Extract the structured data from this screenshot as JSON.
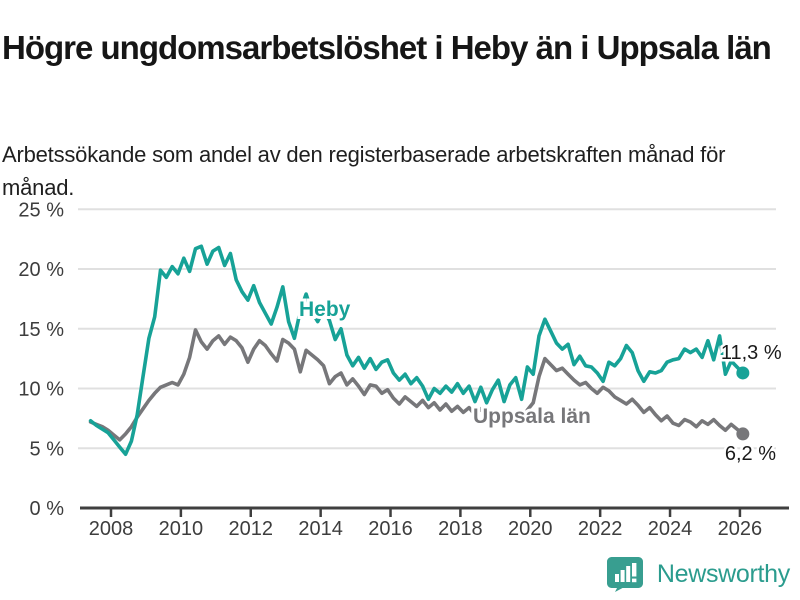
{
  "title": "Högre ungdomsarbetslöshet i Heby än i Uppsala län",
  "subtitle": "Arbetssökande som andel av den registerbaserade arbetskraften månad för månad.",
  "footer": {
    "brand": "Newsworthy",
    "logo_icon": "bar-chart-speech-bubble-icon"
  },
  "colors": {
    "heby_line": "#17a297",
    "uppsala_line": "#77777a",
    "axis": "#3f3f3f",
    "gridline": "#e0e0e0",
    "tick_text": "#3d3d3d",
    "annotation_text": "#1a1a1a",
    "brand_teal": "#389e90"
  },
  "chart_data": {
    "type": "line",
    "title": "Högre ungdomsarbetslöshet i Heby än i Uppsala län",
    "xlabel": "",
    "ylabel": "",
    "grid": true,
    "legend_position": "inline-labels",
    "x_axis": {
      "tick_years": [
        2008,
        2010,
        2012,
        2014,
        2016,
        2018,
        2020,
        2022,
        2024,
        2026
      ],
      "range": [
        2007.2,
        2026.6
      ]
    },
    "y_axis": {
      "tick_labels": [
        "0 %",
        "5 %",
        "10 %",
        "15 %",
        "20 %",
        "25 %"
      ],
      "tick_values": [
        0,
        5,
        10,
        15,
        20,
        25
      ],
      "range": [
        0,
        25
      ]
    },
    "series": [
      {
        "name": "Uppsala län",
        "end_label": "6,2 %",
        "last_value": 6.2,
        "x0": 2007.417,
        "dx": 0.166667,
        "values": [
          7.2,
          7.0,
          6.8,
          6.5,
          6.1,
          5.7,
          6.2,
          6.8,
          7.6,
          8.3,
          9.0,
          9.6,
          10.1,
          10.3,
          10.5,
          10.3,
          11.2,
          12.6,
          14.9,
          13.9,
          13.3,
          14.0,
          14.4,
          13.7,
          14.3,
          14.0,
          13.4,
          12.2,
          13.3,
          14.0,
          13.6,
          12.9,
          12.3,
          14.1,
          13.8,
          13.3,
          11.4,
          13.2,
          12.8,
          12.4,
          11.9,
          10.4,
          11.0,
          11.3,
          10.3,
          10.8,
          10.2,
          9.5,
          10.3,
          10.2,
          9.6,
          9.9,
          9.2,
          8.7,
          9.3,
          8.9,
          8.5,
          9.0,
          8.4,
          8.8,
          8.2,
          8.7,
          8.1,
          8.5,
          8.0,
          8.4,
          7.8,
          8.3,
          7.6,
          8.1,
          7.4,
          6.9,
          7.6,
          7.9,
          7.4,
          8.2,
          8.8,
          11.0,
          12.5,
          12.0,
          11.5,
          11.7,
          11.2,
          10.7,
          10.3,
          10.5,
          10.0,
          9.6,
          10.1,
          9.8,
          9.3,
          9.0,
          8.7,
          9.1,
          8.6,
          8.0,
          8.4,
          7.8,
          7.3,
          7.7,
          7.1,
          6.9,
          7.4,
          7.2,
          6.8,
          7.3,
          7.0,
          7.4,
          6.9,
          6.5,
          7.0,
          6.6,
          6.2
        ]
      },
      {
        "name": "Heby",
        "end_label": "11,3 %",
        "last_value": 11.3,
        "x0": 2007.417,
        "dx": 0.166667,
        "values": [
          7.3,
          6.9,
          6.6,
          6.3,
          5.7,
          5.1,
          4.5,
          5.6,
          7.8,
          11.0,
          14.2,
          16.0,
          19.9,
          19.3,
          20.2,
          19.6,
          20.9,
          19.8,
          21.7,
          21.9,
          20.4,
          21.5,
          21.8,
          20.3,
          21.3,
          19.1,
          18.1,
          17.4,
          18.6,
          17.2,
          16.3,
          15.4,
          16.8,
          18.5,
          15.6,
          14.2,
          16.5,
          17.9,
          16.4,
          15.6,
          16.6,
          15.7,
          14.1,
          15.0,
          12.8,
          11.9,
          12.6,
          11.7,
          12.5,
          11.6,
          12.2,
          12.4,
          11.3,
          10.7,
          11.2,
          10.4,
          10.9,
          10.2,
          9.1,
          10.0,
          9.6,
          10.2,
          9.7,
          10.4,
          9.6,
          10.2,
          8.9,
          10.1,
          8.8,
          9.9,
          10.7,
          8.9,
          10.3,
          10.9,
          9.1,
          11.8,
          11.2,
          14.4,
          15.8,
          14.8,
          13.8,
          13.3,
          13.7,
          12.0,
          12.7,
          11.9,
          11.8,
          11.3,
          10.6,
          12.2,
          11.9,
          12.5,
          13.6,
          13.0,
          11.5,
          10.6,
          11.4,
          11.3,
          11.5,
          12.2,
          12.4,
          12.5,
          13.3,
          13.0,
          13.3,
          12.6,
          14.0,
          12.4,
          14.4,
          11.2,
          12.3,
          11.8,
          11.3
        ]
      }
    ]
  }
}
